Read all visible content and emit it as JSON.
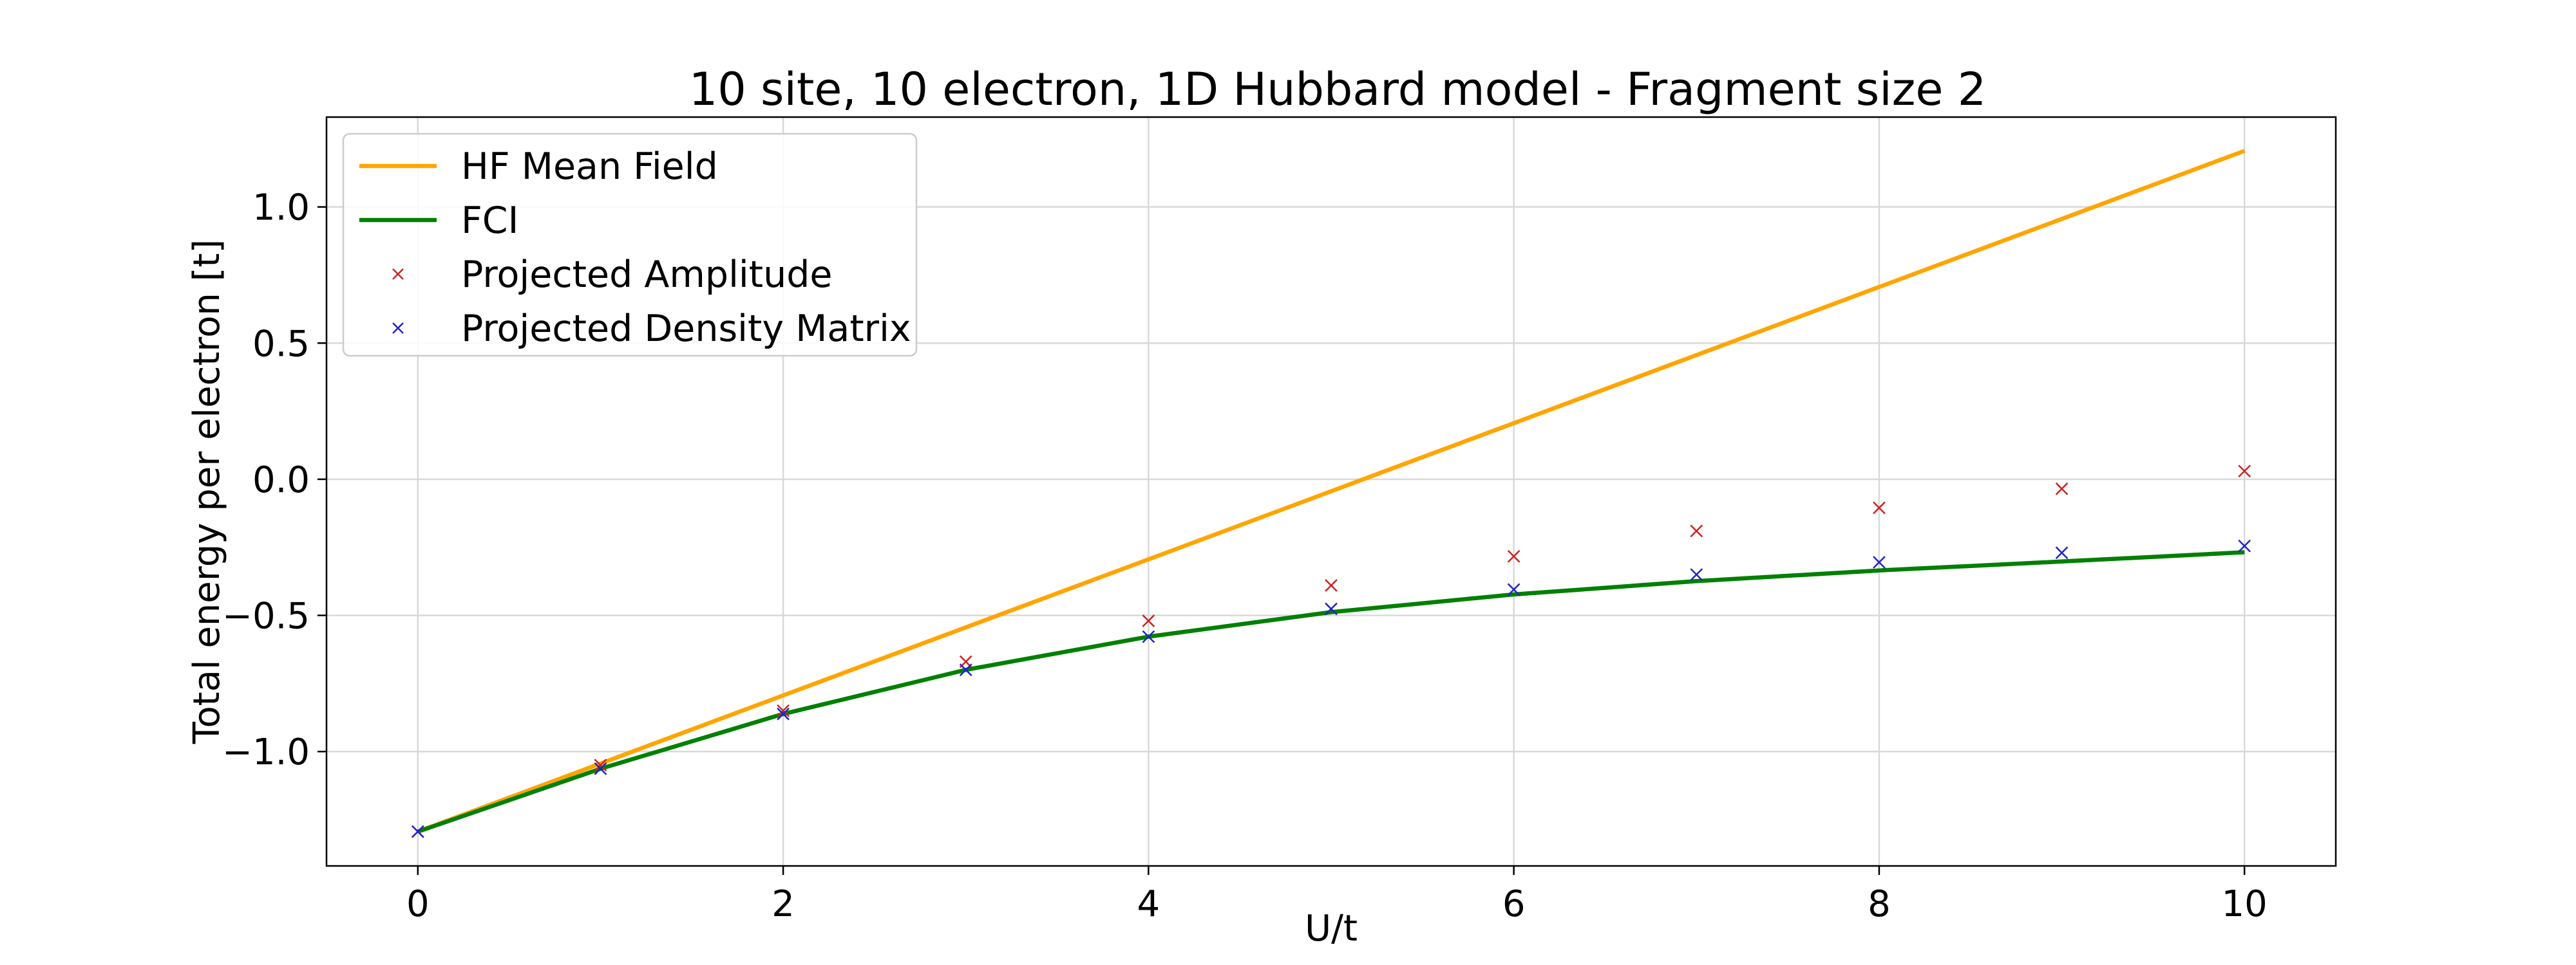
{
  "chart_data": {
    "type": "line",
    "title": "10 site, 10 electron, 1D Hubbard model - Fragment size 2",
    "xlabel": "U/t",
    "ylabel": "Total energy per electron [t]",
    "xlim": [
      -0.5,
      10.5
    ],
    "ylim": [
      -1.42,
      1.33
    ],
    "xticks": [
      0,
      2,
      4,
      6,
      8,
      10
    ],
    "yticks": [
      -1.0,
      -0.5,
      0.0,
      0.5,
      1.0
    ],
    "xtick_labels": [
      "0",
      "2",
      "4",
      "6",
      "8",
      "10"
    ],
    "ytick_labels": [
      "−1.0",
      "−0.5",
      "0.0",
      "0.5",
      "1.0"
    ],
    "grid": true,
    "legend_position": "upper-left",
    "x": [
      0,
      1,
      2,
      3,
      4,
      5,
      6,
      7,
      8,
      9,
      10
    ],
    "series": [
      {
        "name": "HF Mean Field",
        "style": "line",
        "color": "#ffa500",
        "values": [
          -1.294,
          -1.044,
          -0.794,
          -0.544,
          -0.294,
          -0.044,
          0.206,
          0.456,
          0.706,
          0.956,
          1.206
        ]
      },
      {
        "name": "FCI",
        "style": "line",
        "color": "#008000",
        "values": [
          -1.294,
          -1.063,
          -0.862,
          -0.7,
          -0.578,
          -0.488,
          -0.423,
          -0.374,
          -0.335,
          -0.302,
          -0.268
        ]
      },
      {
        "name": "Projected Amplitude",
        "style": "marker",
        "marker": "x",
        "color": "#cc2222",
        "values": [
          -1.294,
          -1.05,
          -0.85,
          -0.67,
          -0.52,
          -0.39,
          -0.283,
          -0.19,
          -0.105,
          -0.035,
          0.03
        ]
      },
      {
        "name": "Projected Density Matrix",
        "style": "marker",
        "marker": "x",
        "color": "#2222cc",
        "values": [
          -1.294,
          -1.063,
          -0.862,
          -0.7,
          -0.578,
          -0.476,
          -0.405,
          -0.35,
          -0.305,
          -0.27,
          -0.245
        ]
      }
    ]
  }
}
